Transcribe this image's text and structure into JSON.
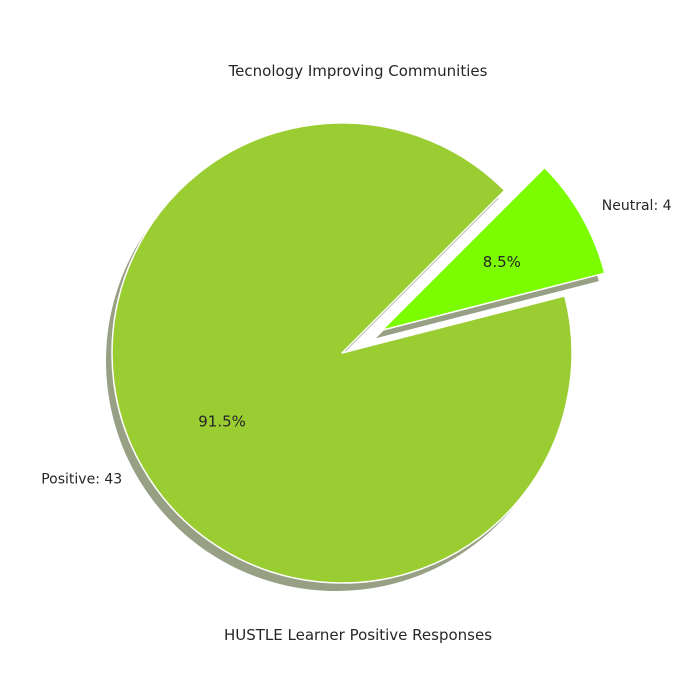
{
  "chart_data": {
    "type": "pie",
    "title": "Tecnology Improving Communities",
    "xlabel": "HUSTLE Learner Positive Responses",
    "slices": [
      {
        "label": "Positive: 43",
        "value": 43,
        "percent_label": "91.5%",
        "color": "#9ACD32",
        "exploded": false
      },
      {
        "label": "Neutral: 4",
        "value": 4,
        "percent_label": "8.5%",
        "color": "#7CFC00",
        "exploded": true
      }
    ],
    "shadow": true,
    "shadow_color": "#8C9677",
    "edge_color": "#ffffff"
  }
}
